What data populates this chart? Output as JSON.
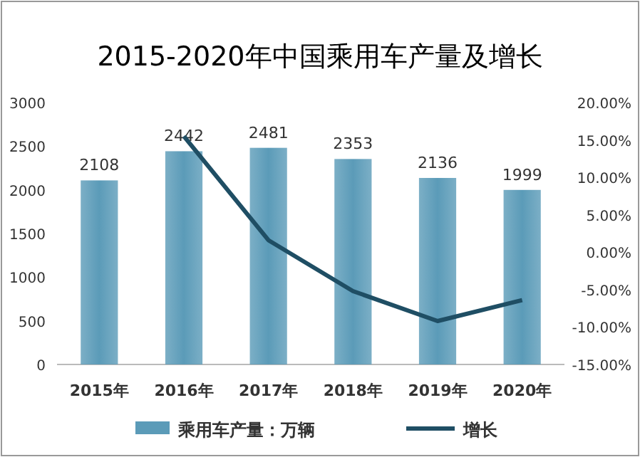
{
  "chart_data": {
    "type": "bar",
    "title": "2015-2020年中国乘用车产量及增长",
    "categories": [
      "2015年",
      "2016年",
      "2017年",
      "2018年",
      "2019年",
      "2020年"
    ],
    "series": [
      {
        "name": "乘用车产量：万辆",
        "color": "#5b9bb8",
        "values": [
          2108,
          2442,
          2481,
          2353,
          2136,
          1999
        ],
        "value_labels": [
          "2108",
          "2442",
          "2481",
          "2353",
          "2136",
          "1999"
        ]
      },
      {
        "name": "增长",
        "type": "line",
        "axis": "y2",
        "color": "#1f4e64",
        "values": [
          null,
          15.5,
          1.6,
          -5.2,
          -9.2,
          -6.4
        ]
      }
    ],
    "ylim": [
      0,
      3000
    ],
    "yticks": [
      0,
      500,
      1000,
      1500,
      2000,
      2500,
      3000
    ],
    "y2lim": [
      -15,
      20
    ],
    "y2ticks": [
      {
        "value": -15,
        "label": "-15.00%"
      },
      {
        "value": -10,
        "label": "-10.00%"
      },
      {
        "value": -5,
        "label": "-5.00%"
      },
      {
        "value": 0,
        "label": "0.00%"
      },
      {
        "value": 5,
        "label": "5.00%"
      },
      {
        "value": 10,
        "label": "10.00%"
      },
      {
        "value": 15,
        "label": "15.00%"
      },
      {
        "value": 20,
        "label": "20.00%"
      }
    ],
    "legend": "bottom",
    "grid": false,
    "marker": "none",
    "line_style": "solid"
  }
}
